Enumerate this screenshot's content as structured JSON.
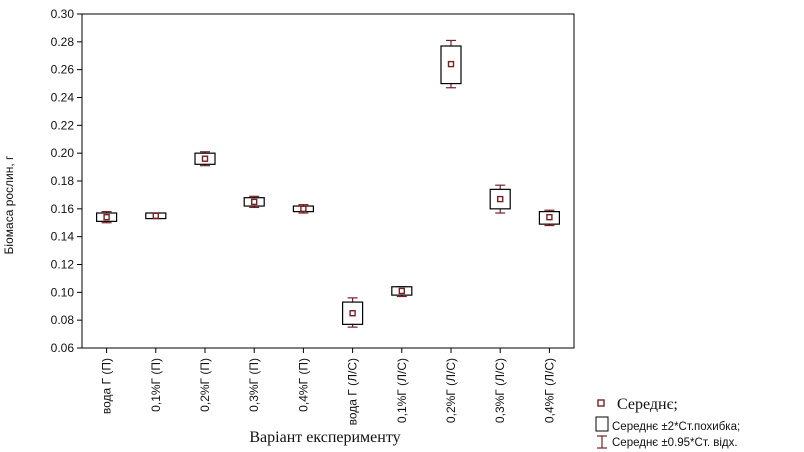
{
  "chart_data": {
    "type": "box",
    "xlabel": "Варіант експерименту",
    "ylabel": "Біомаса рослин, г",
    "ylim": [
      0.06,
      0.3
    ],
    "yticks": [
      "0.06",
      "0.08",
      "0.10",
      "0.12",
      "0.14",
      "0.16",
      "0.18",
      "0.20",
      "0.22",
      "0.24",
      "0.26",
      "0.28",
      "0.30"
    ],
    "grid": false,
    "legend_position": "bottom-right",
    "categories": [
      "вода Г (П)",
      "0,1%Г (П)",
      "0,2%Г (П)",
      "0,3%Г (П)",
      "0,4%Г (П)",
      "вода Г (Л/С)",
      "0,1%Г (Л/С)",
      "0,2%Г (Л/С)",
      "0,3%Г (Л/С)",
      "0,4%Г (Л/С)"
    ],
    "series": [
      {
        "name": "Середнє;",
        "values": [
          0.154,
          0.155,
          0.196,
          0.165,
          0.16,
          0.085,
          0.101,
          0.264,
          0.167,
          0.154
        ]
      },
      {
        "name": "Середнє ±2*Ст.похибка;",
        "low": [
          0.151,
          0.153,
          0.192,
          0.162,
          0.158,
          0.077,
          0.098,
          0.25,
          0.16,
          0.149
        ],
        "high": [
          0.157,
          0.157,
          0.2,
          0.168,
          0.162,
          0.093,
          0.104,
          0.277,
          0.174,
          0.158
        ]
      },
      {
        "name": "Середнє ±0.95*Ст. відх.",
        "low": [
          0.15,
          0.153,
          0.191,
          0.161,
          0.157,
          0.075,
          0.097,
          0.247,
          0.157,
          0.148
        ],
        "high": [
          0.158,
          0.157,
          0.201,
          0.169,
          0.163,
          0.096,
          0.104,
          0.281,
          0.177,
          0.159
        ]
      }
    ],
    "colors": {
      "box": "#000000",
      "whisker": "#7a1f24",
      "mean": "#7a1f24"
    }
  }
}
